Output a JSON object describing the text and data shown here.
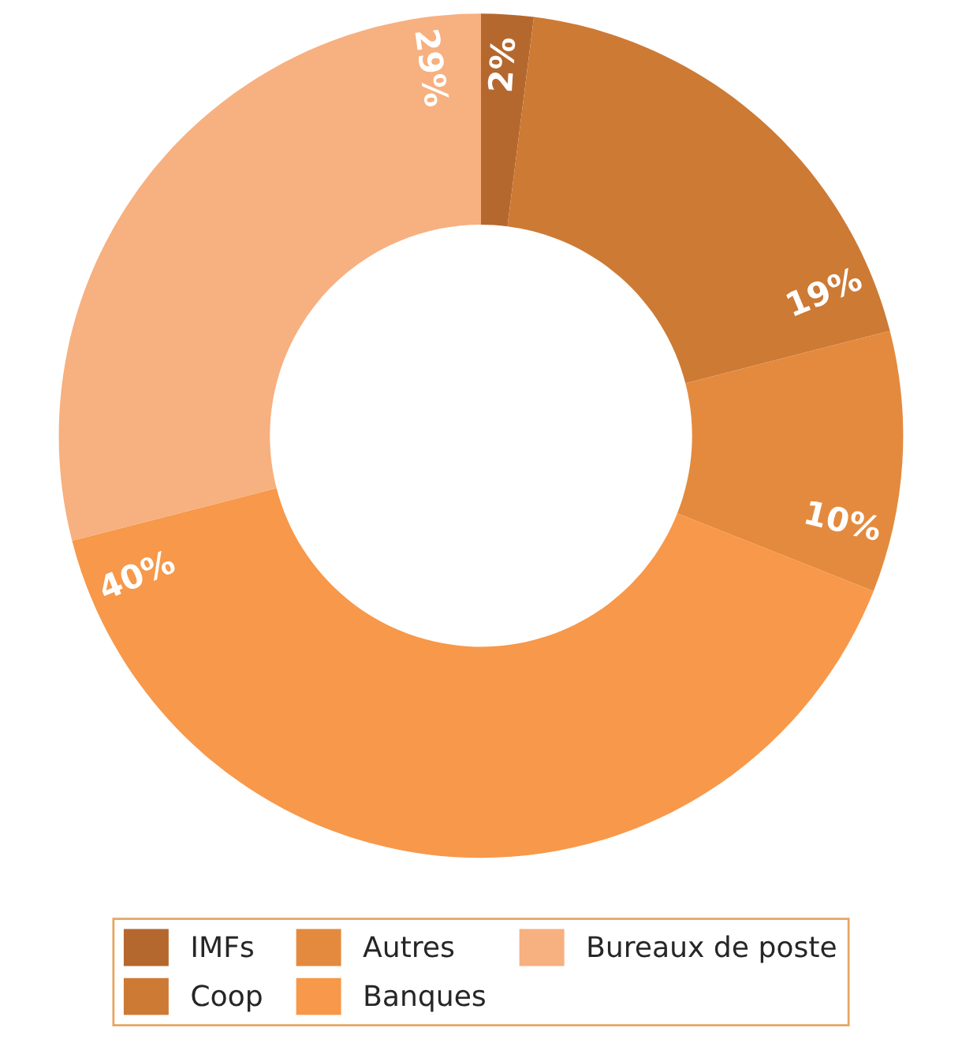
{
  "chart_data": {
    "type": "donut",
    "categories": [
      "IMFs",
      "Coop",
      "Autres",
      "Banques",
      "Bureaux de poste"
    ],
    "values": [
      2,
      19,
      10,
      40,
      29
    ],
    "colors": [
      "#b5682e",
      "#cd7a35",
      "#e48a3e",
      "#f7984a",
      "#f7b07f"
    ],
    "value_labels": [
      "2%",
      "19%",
      "10%",
      "40%",
      "29%"
    ],
    "legend": "bottom"
  }
}
